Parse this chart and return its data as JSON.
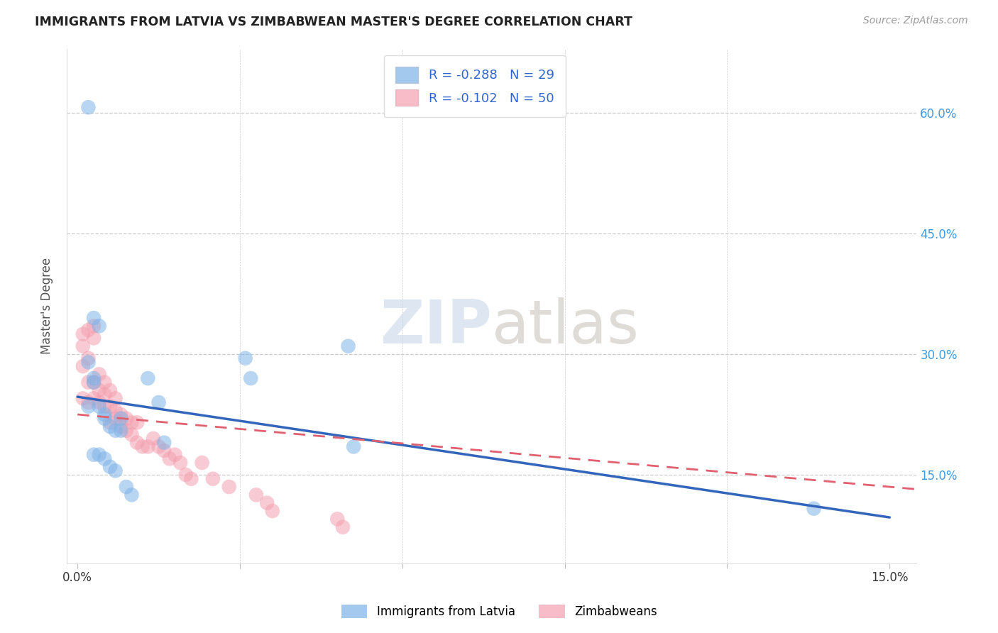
{
  "title": "IMMIGRANTS FROM LATVIA VS ZIMBABWEAN MASTER'S DEGREE CORRELATION CHART",
  "source": "Source: ZipAtlas.com",
  "ylabel": "Master's Degree",
  "yticks_labels": [
    "15.0%",
    "30.0%",
    "45.0%",
    "60.0%"
  ],
  "ytick_vals": [
    0.15,
    0.3,
    0.45,
    0.6
  ],
  "xtick_vals": [
    0.0,
    0.03,
    0.06,
    0.09,
    0.12,
    0.15
  ],
  "xtick_labels": [
    "0.0%",
    "",
    "",
    "",
    "",
    "15.0%"
  ],
  "xlim": [
    -0.002,
    0.155
  ],
  "ylim": [
    0.04,
    0.68
  ],
  "legend_r_latvia": "-0.288",
  "legend_n_latvia": "29",
  "legend_r_zimbabwe": "-0.102",
  "legend_n_zimbabwe": "50",
  "color_latvia": "#7EB3E8",
  "color_zimbabwe": "#F4A0B0",
  "color_latvia_line": "#3366BB",
  "color_zimbabwe_line": "#E06070",
  "latvia_x": [
    0.002,
    0.003,
    0.004,
    0.002,
    0.002,
    0.003,
    0.003,
    0.004,
    0.005,
    0.005,
    0.006,
    0.007,
    0.008,
    0.008,
    0.013,
    0.015,
    0.016,
    0.031,
    0.032,
    0.05,
    0.051,
    0.136,
    0.003,
    0.004,
    0.005,
    0.006,
    0.007,
    0.009,
    0.01
  ],
  "latvia_y": [
    0.607,
    0.345,
    0.335,
    0.29,
    0.235,
    0.265,
    0.27,
    0.235,
    0.225,
    0.22,
    0.21,
    0.205,
    0.205,
    0.22,
    0.27,
    0.24,
    0.19,
    0.295,
    0.27,
    0.31,
    0.185,
    0.108,
    0.175,
    0.175,
    0.17,
    0.16,
    0.155,
    0.135,
    0.125
  ],
  "zimbabwe_x": [
    0.001,
    0.001,
    0.001,
    0.001,
    0.002,
    0.002,
    0.002,
    0.002,
    0.003,
    0.003,
    0.003,
    0.003,
    0.004,
    0.004,
    0.004,
    0.005,
    0.005,
    0.005,
    0.006,
    0.006,
    0.006,
    0.007,
    0.007,
    0.007,
    0.008,
    0.008,
    0.009,
    0.009,
    0.01,
    0.01,
    0.011,
    0.011,
    0.012,
    0.013,
    0.014,
    0.015,
    0.016,
    0.017,
    0.018,
    0.019,
    0.02,
    0.021,
    0.023,
    0.025,
    0.028,
    0.033,
    0.035,
    0.036,
    0.048,
    0.049
  ],
  "zimbabwe_y": [
    0.325,
    0.31,
    0.285,
    0.245,
    0.33,
    0.295,
    0.265,
    0.24,
    0.335,
    0.32,
    0.265,
    0.245,
    0.275,
    0.255,
    0.24,
    0.265,
    0.25,
    0.235,
    0.255,
    0.235,
    0.215,
    0.245,
    0.23,
    0.22,
    0.225,
    0.21,
    0.22,
    0.205,
    0.215,
    0.2,
    0.215,
    0.19,
    0.185,
    0.185,
    0.195,
    0.185,
    0.18,
    0.17,
    0.175,
    0.165,
    0.15,
    0.145,
    0.165,
    0.145,
    0.135,
    0.125,
    0.115,
    0.105,
    0.095,
    0.085
  ],
  "latvia_line_x": [
    0.0,
    0.15
  ],
  "latvia_line_y": [
    0.247,
    0.097
  ],
  "zimbabwe_line_x": [
    0.0,
    0.05
  ],
  "zimbabwe_line_y": [
    0.225,
    0.195
  ]
}
